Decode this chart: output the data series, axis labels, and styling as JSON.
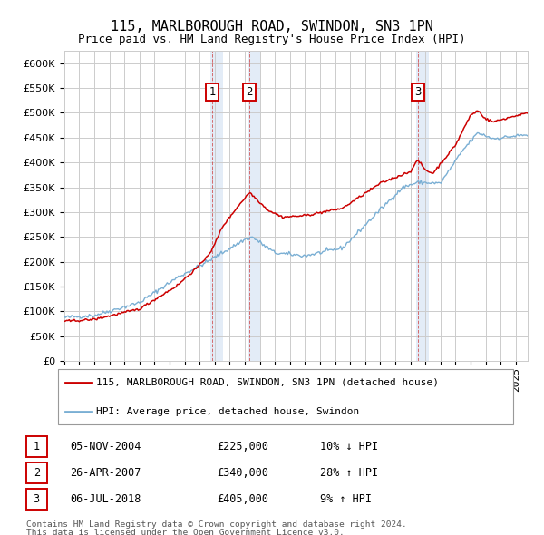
{
  "title": "115, MARLBOROUGH ROAD, SWINDON, SN3 1PN",
  "subtitle": "Price paid vs. HM Land Registry's House Price Index (HPI)",
  "ylim": [
    0,
    620000
  ],
  "xlim_start": 1995.0,
  "xlim_end": 2025.8,
  "sales": [
    {
      "label": "1",
      "date": 2004.85,
      "price": 225000,
      "desc": "05-NOV-2004",
      "pct": "10% ↓ HPI"
    },
    {
      "label": "2",
      "date": 2007.32,
      "price": 340000,
      "desc": "26-APR-2007",
      "pct": "28% ↑ HPI"
    },
    {
      "label": "3",
      "date": 2018.51,
      "price": 405000,
      "desc": "06-JUL-2018",
      "pct": "9% ↑ HPI"
    }
  ],
  "legend_line1": "115, MARLBOROUGH ROAD, SWINDON, SN3 1PN (detached house)",
  "legend_line2": "HPI: Average price, detached house, Swindon",
  "footer1": "Contains HM Land Registry data © Crown copyright and database right 2024.",
  "footer2": "This data is licensed under the Open Government Licence v3.0.",
  "red_color": "#cc0000",
  "blue_color": "#7aafd4",
  "background_color": "#ffffff",
  "grid_color": "#cccccc",
  "shade_color": "#dde8f5",
  "hpi_anchors": [
    [
      1995.0,
      88000
    ],
    [
      1997.0,
      92000
    ],
    [
      2000.0,
      118000
    ],
    [
      2002.5,
      168000
    ],
    [
      2004.5,
      200000
    ],
    [
      2007.0,
      245000
    ],
    [
      2007.5,
      250000
    ],
    [
      2009.0,
      218000
    ],
    [
      2011.0,
      212000
    ],
    [
      2013.5,
      228000
    ],
    [
      2016.0,
      305000
    ],
    [
      2017.5,
      350000
    ],
    [
      2018.5,
      360000
    ],
    [
      2020.0,
      358000
    ],
    [
      2021.5,
      425000
    ],
    [
      2022.5,
      460000
    ],
    [
      2023.5,
      448000
    ],
    [
      2025.5,
      455000
    ]
  ],
  "pp_anchors": [
    [
      1995.0,
      80000
    ],
    [
      1997.0,
      84000
    ],
    [
      2000.0,
      105000
    ],
    [
      2002.5,
      152000
    ],
    [
      2004.0,
      193000
    ],
    [
      2004.85,
      225000
    ],
    [
      2005.5,
      270000
    ],
    [
      2006.5,
      310000
    ],
    [
      2007.32,
      340000
    ],
    [
      2008.0,
      320000
    ],
    [
      2008.5,
      305000
    ],
    [
      2009.5,
      290000
    ],
    [
      2011.0,
      293000
    ],
    [
      2013.5,
      308000
    ],
    [
      2016.0,
      358000
    ],
    [
      2018.0,
      382000
    ],
    [
      2018.51,
      405000
    ],
    [
      2019.0,
      385000
    ],
    [
      2019.5,
      378000
    ],
    [
      2021.0,
      435000
    ],
    [
      2022.0,
      495000
    ],
    [
      2022.5,
      505000
    ],
    [
      2023.0,
      488000
    ],
    [
      2023.5,
      482000
    ],
    [
      2024.5,
      490000
    ],
    [
      2025.5,
      498000
    ]
  ],
  "title_fontsize": 11,
  "subtitle_fontsize": 9,
  "tick_fontsize": 8,
  "legend_fontsize": 8,
  "table_fontsize": 8.5,
  "footer_fontsize": 6.8
}
